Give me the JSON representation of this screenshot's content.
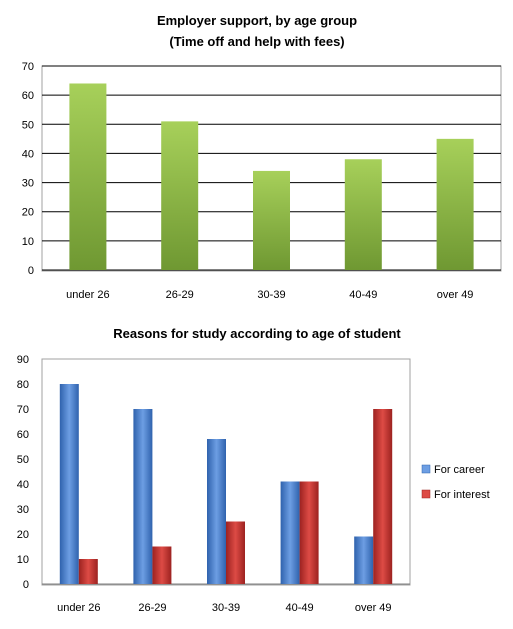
{
  "chart_data": [
    {
      "type": "bar",
      "title": "Employer support, by age group",
      "subtitle": "(Time off and help with fees)",
      "categories": [
        "under 26",
        "26-29",
        "30-39",
        "40-49",
        "over 49"
      ],
      "values": [
        64,
        51,
        34,
        38,
        45
      ],
      "ylim": [
        0,
        70
      ],
      "yticks": [
        "0",
        "10",
        "20",
        "30",
        "40",
        "50",
        "60",
        "70"
      ],
      "grid": true,
      "colors": {
        "bar_dark": "#6f9832",
        "bar_light": "#a7d05a",
        "grid": "#000000",
        "border": "#a0a0a0"
      }
    },
    {
      "type": "bar",
      "title": "Reasons for study according to age of student",
      "categories": [
        "under 26",
        "26-29",
        "30-39",
        "40-49",
        "over 49"
      ],
      "series": [
        {
          "name": "For career",
          "values": [
            80,
            70,
            58,
            41,
            19
          ],
          "color_dark": "#2f62ad",
          "color_light": "#6d9ee3"
        },
        {
          "name": "For interest",
          "values": [
            10,
            15,
            25,
            41,
            70
          ],
          "color_dark": "#9c2220",
          "color_light": "#dd4b45"
        }
      ],
      "ylim": [
        0,
        90
      ],
      "yticks": [
        "0",
        "10",
        "20",
        "30",
        "40",
        "50",
        "60",
        "70",
        "80",
        "90"
      ],
      "grid": false,
      "legend": "right"
    }
  ]
}
